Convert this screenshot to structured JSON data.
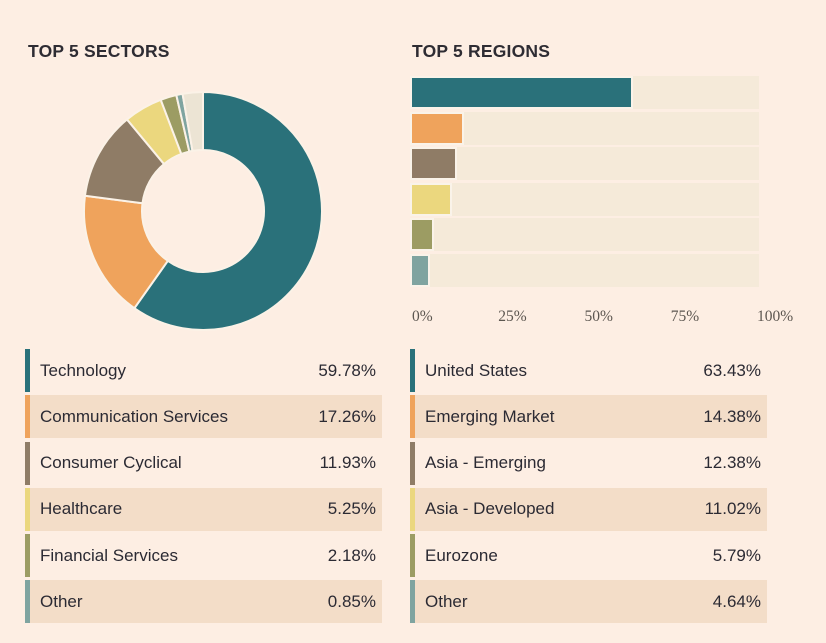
{
  "palette": {
    "page_bg": "#fdeee3",
    "alt_row_bg": "#f3ddc8",
    "track_bg": "#f5ead9",
    "separator": "#faf3e9",
    "slice_gap": "#fbf2e7",
    "text": "#2b2a33",
    "title_text": "#2e2c33",
    "axis_text": "#5c5650"
  },
  "chart_data": [
    {
      "type": "pie",
      "variant": "donut",
      "title": "TOP 5 SECTORS",
      "start": "12 o'clock, clockwise",
      "slices": [
        {
          "label": "Technology",
          "value": 59.78,
          "display": "59.78%",
          "color": "#2a717a"
        },
        {
          "label": "Communication Services",
          "value": 17.26,
          "display": "17.26%",
          "color": "#efa35c"
        },
        {
          "label": "Consumer Cyclical",
          "value": 11.93,
          "display": "11.93%",
          "color": "#8f7c66"
        },
        {
          "label": "Healthcare",
          "value": 5.25,
          "display": "5.25%",
          "color": "#ebd77e"
        },
        {
          "label": "Financial Services",
          "value": 2.18,
          "display": "2.18%",
          "color": "#9c9c63"
        },
        {
          "label": "Other",
          "value": 0.85,
          "display": "0.85%",
          "color": "#7fa4a0"
        },
        {
          "label": "",
          "value": 2.75,
          "display": "",
          "color": "#ece4d4"
        }
      ],
      "legend": [
        {
          "label": "Technology",
          "display": "59.78%",
          "color": "#2a717a"
        },
        {
          "label": "Communication Services",
          "display": "17.26%",
          "color": "#efa35c"
        },
        {
          "label": "Consumer Cyclical",
          "display": "11.93%",
          "color": "#8f7c66"
        },
        {
          "label": "Healthcare",
          "display": "5.25%",
          "color": "#ebd77e"
        },
        {
          "label": "Financial Services",
          "display": "2.18%",
          "color": "#9c9c63"
        },
        {
          "label": "Other",
          "display": "0.85%",
          "color": "#7fa4a0"
        }
      ]
    },
    {
      "type": "bar",
      "orientation": "horizontal",
      "title": "TOP 5 REGIONS",
      "categories": [
        "United States",
        "Emerging Market",
        "Asia - Emerging",
        "Asia - Developed",
        "Eurozone",
        "Other"
      ],
      "values": [
        63.43,
        14.38,
        12.38,
        11.02,
        5.79,
        4.64
      ],
      "colors": [
        "#2a717a",
        "#efa35c",
        "#8f7c66",
        "#ebd77e",
        "#9c9c63",
        "#7fa4a0"
      ],
      "xlim": [
        0,
        100
      ],
      "grid": false,
      "x_ticks": [
        {
          "value": 0,
          "label": "0%"
        },
        {
          "value": 25,
          "label": "25%"
        },
        {
          "value": 50,
          "label": "50%"
        },
        {
          "value": 75,
          "label": "75%"
        },
        {
          "value": 100,
          "label": "100%"
        }
      ],
      "legend": [
        {
          "label": "United States",
          "display": "63.43%",
          "color": "#2a717a"
        },
        {
          "label": "Emerging Market",
          "display": "14.38%",
          "color": "#efa35c"
        },
        {
          "label": "Asia - Emerging",
          "display": "12.38%",
          "color": "#8f7c66"
        },
        {
          "label": "Asia - Developed",
          "display": "11.02%",
          "color": "#ebd77e"
        },
        {
          "label": "Eurozone",
          "display": "5.79%",
          "color": "#9c9c63"
        },
        {
          "label": "Other",
          "display": "4.64%",
          "color": "#7fa4a0"
        }
      ]
    }
  ]
}
